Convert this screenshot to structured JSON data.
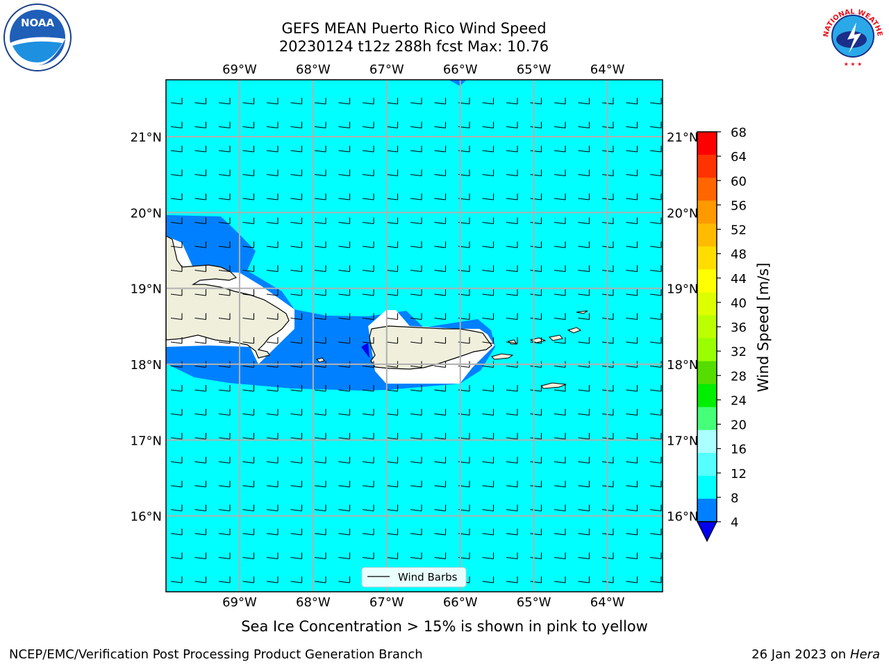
{
  "title_line1": "GEFS MEAN Puerto Rico Wind Speed",
  "title_line2": "20230124 t12z 288h fcst   Max: 10.76",
  "subnote": "Sea Ice Concentration > 15% is shown in pink to yellow",
  "footer_left": "NCEP/EMC/Verification Post Processing Product Generation Branch",
  "footer_date": "26 Jan 2023 on",
  "footer_host": "Hera",
  "legend_label": "Wind Barbs",
  "colorbar_label": "Wind Speed [m/s]",
  "logo_left": "NOAA",
  "logo_right": "NATIONAL WEATHER SERVICE",
  "map": {
    "lon_range": [
      -70,
      -63.25
    ],
    "lat_range": [
      15.0,
      21.75
    ],
    "lon_ticks": [
      "69°W",
      "68°W",
      "67°W",
      "66°W",
      "65°W",
      "64°W"
    ],
    "lat_ticks": [
      "21°N",
      "20°N",
      "19°N",
      "18°N",
      "17°N",
      "16°N"
    ],
    "grid": true,
    "background_color": "#00ffff",
    "land_color": "#efefdc"
  },
  "colorbar": {
    "ticks": [
      "68",
      "64",
      "60",
      "56",
      "52",
      "48",
      "44",
      "40",
      "36",
      "32",
      "28",
      "24",
      "20",
      "16",
      "12",
      "8",
      "4"
    ],
    "colors": [
      "#ff0000",
      "#ff3300",
      "#ff6600",
      "#ff9900",
      "#ffbb00",
      "#ffdd00",
      "#ffff00",
      "#ddff00",
      "#bbff00",
      "#99ff00",
      "#55dd00",
      "#00ee00",
      "#44ff77",
      "#aaffff",
      "#55ffff",
      "#00ffff",
      "#0080ff"
    ],
    "extend_color": "#0000ee"
  }
}
